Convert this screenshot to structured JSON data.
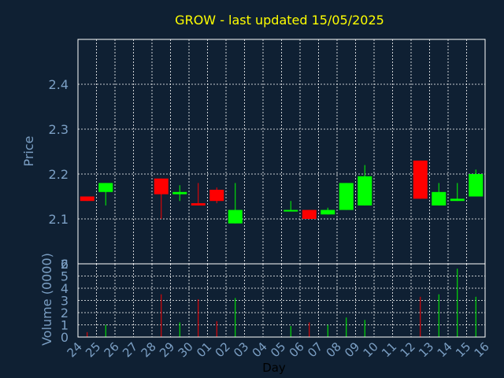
{
  "chart_data": {
    "type": "candlestick",
    "title": "GROW - last updated 15/05/2025",
    "price_axis": {
      "label": "Price",
      "ylim": [
        2.0,
        2.5
      ],
      "ticks": [
        2.1,
        2.2,
        2.3,
        2.4
      ],
      "tick_labels": [
        "2.1",
        "2.2",
        "2.3",
        "2.4"
      ],
      "bottom_label": "2"
    },
    "volume_axis": {
      "label": "Volume (0000)",
      "ylim": [
        0,
        6
      ],
      "ticks": [
        0,
        1,
        2,
        3,
        4,
        5,
        6
      ],
      "tick_labels": [
        "0",
        "1",
        "2",
        "3",
        "4",
        "5",
        "6"
      ]
    },
    "x_axis": {
      "label": "Day",
      "tick_labels": [
        "24",
        "25",
        "26",
        "27",
        "28",
        "29",
        "30",
        "01",
        "02",
        "03",
        "04",
        "05",
        "06",
        "07",
        "08",
        "09",
        "10",
        "11",
        "12",
        "13",
        "14",
        "15",
        "16"
      ]
    },
    "grid": true,
    "colors": {
      "background": "#0f2033",
      "up": "#00ff00",
      "down": "#ff0000",
      "title": "#ffff00",
      "axis_text": "#7b9fc4",
      "frame": "#ffffff",
      "grid": "#ffffff",
      "xlabel": "#000000"
    },
    "candles": [
      {
        "x": "24",
        "open": 2.15,
        "high": 2.15,
        "low": 2.14,
        "close": 2.14
      },
      {
        "x": "25",
        "open": 2.16,
        "high": 2.18,
        "low": 2.13,
        "close": 2.18
      },
      {
        "x": "28",
        "open": 2.19,
        "high": 2.19,
        "low": 2.1,
        "close": 2.155
      },
      {
        "x": "29",
        "open": 2.155,
        "high": 2.175,
        "low": 2.14,
        "close": 2.16
      },
      {
        "x": "30",
        "open": 2.135,
        "high": 2.18,
        "low": 2.13,
        "close": 2.13
      },
      {
        "x": "01",
        "open": 2.165,
        "high": 2.17,
        "low": 2.135,
        "close": 2.14
      },
      {
        "x": "02",
        "open": 2.09,
        "high": 2.18,
        "low": 2.09,
        "close": 2.12
      },
      {
        "x": "05",
        "open": 2.12,
        "high": 2.14,
        "low": 2.12,
        "close": 2.12
      },
      {
        "x": "06",
        "open": 2.12,
        "high": 2.12,
        "low": 2.1,
        "close": 2.1
      },
      {
        "x": "07",
        "open": 2.11,
        "high": 2.125,
        "low": 2.11,
        "close": 2.12
      },
      {
        "x": "08",
        "open": 2.12,
        "high": 2.18,
        "low": 2.12,
        "close": 2.18
      },
      {
        "x": "09",
        "open": 2.13,
        "high": 2.22,
        "low": 2.13,
        "close": 2.195
      },
      {
        "x": "12",
        "open": 2.23,
        "high": 2.23,
        "low": 2.145,
        "close": 2.145
      },
      {
        "x": "13",
        "open": 2.13,
        "high": 2.18,
        "low": 2.13,
        "close": 2.16
      },
      {
        "x": "14",
        "open": 2.14,
        "high": 2.18,
        "low": 2.14,
        "close": 2.145
      },
      {
        "x": "15",
        "open": 2.15,
        "high": 2.21,
        "low": 2.15,
        "close": 2.2
      }
    ],
    "volume": [
      {
        "x": "24",
        "value": 0.4,
        "dir": "down"
      },
      {
        "x": "25",
        "value": 1.0,
        "dir": "up"
      },
      {
        "x": "28",
        "value": 3.5,
        "dir": "down"
      },
      {
        "x": "29",
        "value": 1.2,
        "dir": "up"
      },
      {
        "x": "30",
        "value": 3.1,
        "dir": "down"
      },
      {
        "x": "01",
        "value": 1.3,
        "dir": "down"
      },
      {
        "x": "02",
        "value": 3.2,
        "dir": "up"
      },
      {
        "x": "05",
        "value": 0.9,
        "dir": "up"
      },
      {
        "x": "06",
        "value": 1.2,
        "dir": "down"
      },
      {
        "x": "07",
        "value": 1.0,
        "dir": "up"
      },
      {
        "x": "08",
        "value": 1.6,
        "dir": "up"
      },
      {
        "x": "09",
        "value": 1.4,
        "dir": "up"
      },
      {
        "x": "12",
        "value": 3.3,
        "dir": "down"
      },
      {
        "x": "13",
        "value": 3.5,
        "dir": "up"
      },
      {
        "x": "14",
        "value": 5.6,
        "dir": "up"
      },
      {
        "x": "15",
        "value": 3.3,
        "dir": "up"
      }
    ]
  }
}
